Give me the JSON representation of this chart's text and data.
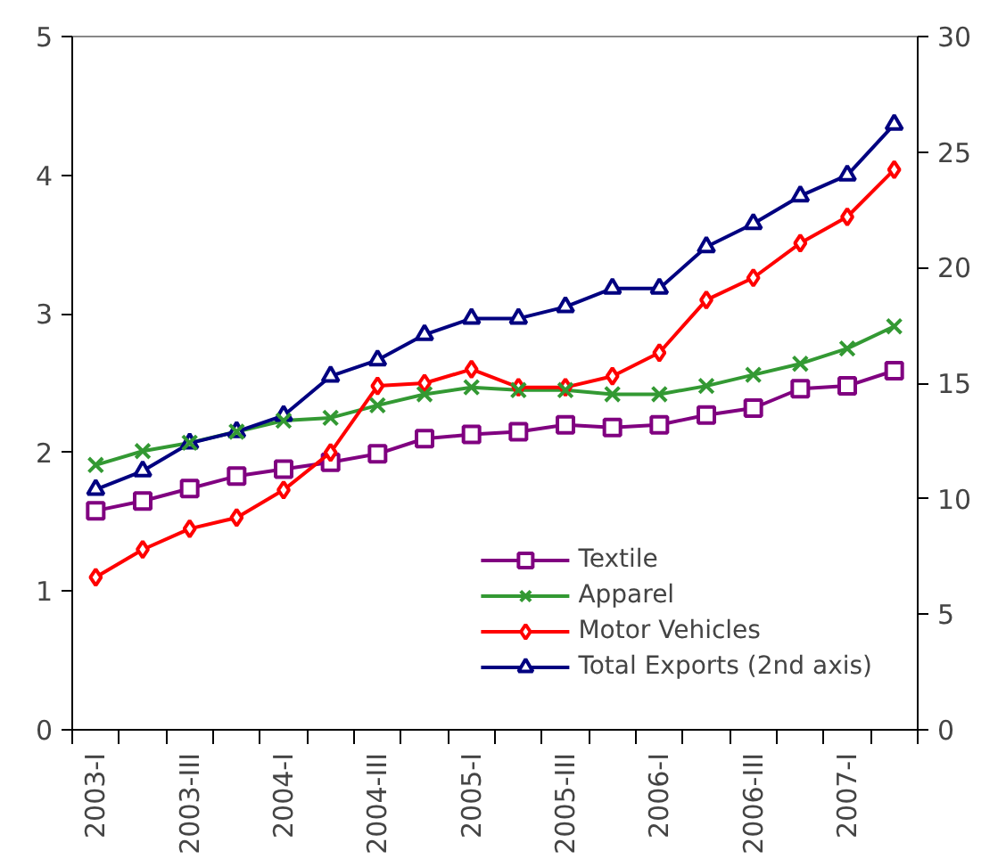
{
  "chart_data": {
    "type": "line",
    "categories": [
      "2003-I",
      null,
      "2003-III",
      null,
      "2004-I",
      null,
      "2004-III",
      null,
      "2005-I",
      null,
      "2005-III",
      null,
      "2006-I",
      null,
      "2006-III",
      null,
      "2007-I",
      null
    ],
    "series": [
      {
        "name": "Textile",
        "color": "#800080",
        "marker": "square",
        "values": [
          1.58,
          1.65,
          1.74,
          1.83,
          1.88,
          1.93,
          1.99,
          2.1,
          2.13,
          2.15,
          2.2,
          2.18,
          2.2,
          2.27,
          2.32,
          2.46,
          2.48,
          2.59
        ]
      },
      {
        "name": "Apparel",
        "color": "#339933",
        "marker": "cross",
        "values": [
          1.91,
          2.01,
          2.07,
          2.15,
          2.23,
          2.25,
          2.34,
          2.42,
          2.47,
          2.45,
          2.45,
          2.42,
          2.42,
          2.48,
          2.56,
          2.64,
          2.75,
          2.91
        ]
      },
      {
        "name": "Motor Vehicles",
        "color": "#ff0000",
        "marker": "diamond",
        "values": [
          1.1,
          1.3,
          1.45,
          1.53,
          1.73,
          2.0,
          2.48,
          2.5,
          2.6,
          2.47,
          2.47,
          2.55,
          2.72,
          3.1,
          3.26,
          3.51,
          3.7,
          4.04
        ]
      },
      {
        "name": "Total Exports (2nd axis)",
        "color": "#000080",
        "marker": "triangle",
        "axis": "y2",
        "values": [
          10.4,
          11.2,
          12.4,
          12.9,
          13.6,
          15.3,
          16.0,
          17.1,
          17.8,
          17.8,
          18.3,
          19.1,
          19.1,
          20.9,
          21.9,
          23.1,
          24.0,
          26.2
        ]
      }
    ],
    "ylim": [
      0,
      5
    ],
    "yticks": [
      0,
      1,
      2,
      3,
      4,
      5
    ],
    "y2lim": [
      0,
      30
    ],
    "y2ticks": [
      0,
      5,
      10,
      15,
      20,
      25,
      30
    ],
    "grid": false,
    "legend": "bottom right",
    "line_style": "solid"
  }
}
